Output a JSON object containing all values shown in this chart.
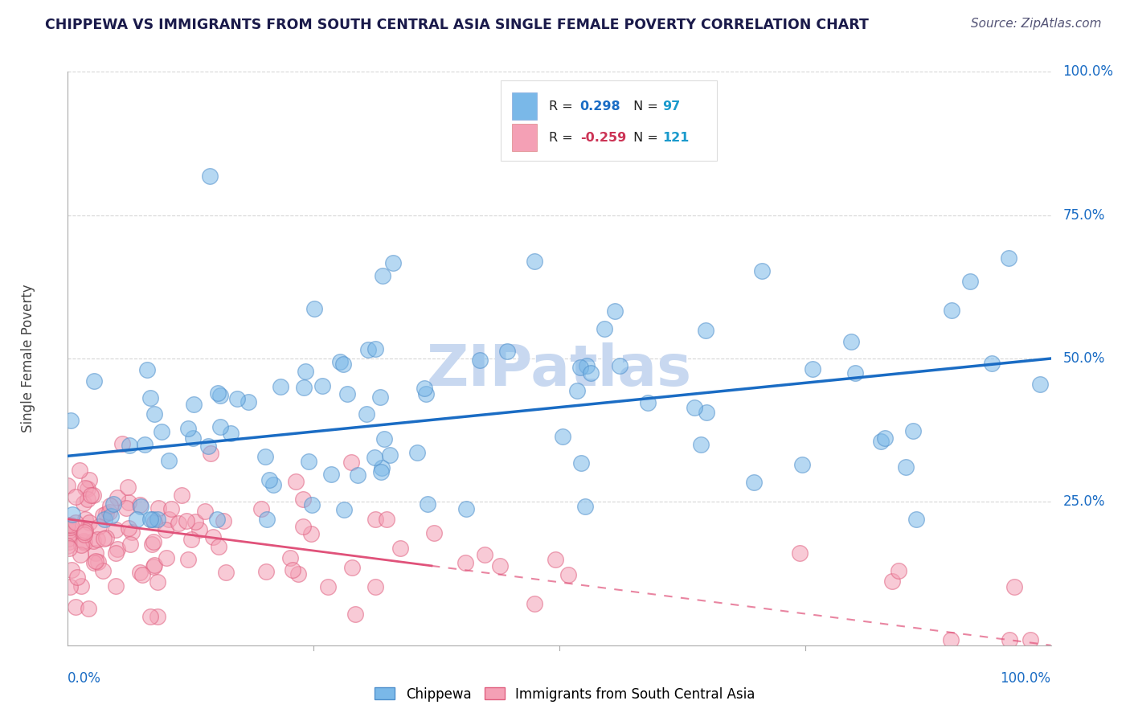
{
  "title": "CHIPPEWA VS IMMIGRANTS FROM SOUTH CENTRAL ASIA SINGLE FEMALE POVERTY CORRELATION CHART",
  "source": "Source: ZipAtlas.com",
  "ylabel": "Single Female Poverty",
  "background_color": "#ffffff",
  "blue_color": "#7ab8e8",
  "pink_color": "#f4a0b5",
  "blue_line_color": "#1a6cc4",
  "pink_line_color": "#e0527a",
  "grid_color": "#cccccc",
  "watermark_color": "#c8d8f0",
  "title_color": "#1a1a4a",
  "legend_R_color_blue": "#1a6cc4",
  "legend_R_color_pink": "#cc3355",
  "legend_N_color": "#1a9acc",
  "axis_label_color": "#1a6cc4",
  "chippewa_R": 0.298,
  "chippewa_N": 97,
  "immigrant_R": -0.259,
  "immigrant_N": 121
}
